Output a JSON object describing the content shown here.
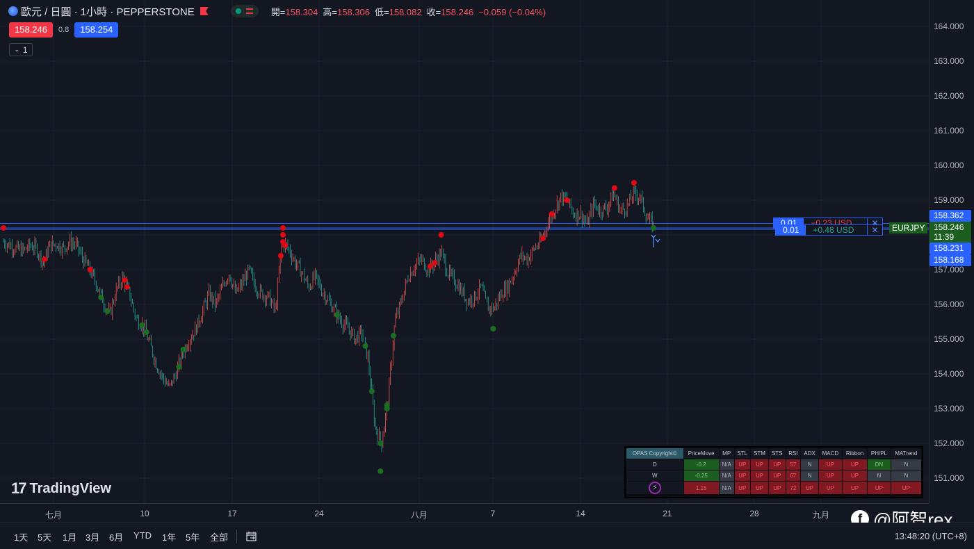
{
  "header": {
    "symbol_title": "歐元 / 日圓 · 1小時 · PEPPERSTONE",
    "ohlc": [
      {
        "label": "開",
        "value": "158.304"
      },
      {
        "label": "高",
        "value": "158.306"
      },
      {
        "label": "低",
        "value": "158.082"
      },
      {
        "label": "收",
        "value": "158.246"
      }
    ],
    "change": "−0.059 (−0.04%)",
    "bid": "158.246",
    "spread": "0.8",
    "ask": "158.254",
    "indicator_count": "1"
  },
  "price_axis": {
    "ticks": [
      "164.000",
      "163.000",
      "162.000",
      "161.000",
      "160.000",
      "159.000",
      "157.000",
      "156.000",
      "155.000",
      "154.000",
      "153.000",
      "152.000",
      "151.000"
    ],
    "tags": [
      {
        "text": "158.362",
        "color": "#2962ff"
      },
      {
        "text": "158.246",
        "color": "#1b5e20"
      },
      {
        "text": "11:39",
        "color": "#1b5e20"
      },
      {
        "text": "158.231",
        "color": "#2962ff"
      },
      {
        "text": "158.168",
        "color": "#2962ff"
      }
    ]
  },
  "time_axis": {
    "labels": [
      "七月",
      "10",
      "17",
      "24",
      "八月",
      "7",
      "14",
      "21",
      "28",
      "九月"
    ]
  },
  "orders": {
    "order_top": {
      "qty": "0.01",
      "pnl": "−0.23 USD"
    },
    "order_bottom": {
      "qty": "0.01",
      "pnl": "+0.48 USD"
    },
    "symbol_tag": "EURJPY"
  },
  "toolbar": {
    "ranges": [
      "1天",
      "5天",
      "1月",
      "3月",
      "6月",
      "YTD",
      "1年",
      "5年",
      "全部"
    ],
    "clock": "13:48:20 (UTC+8)"
  },
  "watermark": {
    "logo_text": "TradingView",
    "rex_text": "@阿智rex"
  },
  "dashboard": {
    "brand": "OPAS Copyright©",
    "headers": [
      "PriceMove",
      "MP",
      "STL",
      "STM",
      "STS",
      "RSI",
      "ADX",
      "MACD",
      "Ribbon",
      "PH/PL",
      "MATrend"
    ],
    "rows": [
      {
        "label": "D",
        "cells": [
          {
            "v": "-0.2",
            "c": "green"
          },
          {
            "v": "N/A",
            "c": "n"
          },
          {
            "v": "UP",
            "c": "up"
          },
          {
            "v": "UP",
            "c": "up"
          },
          {
            "v": "UP",
            "c": "up"
          },
          {
            "v": "57",
            "c": "up"
          },
          {
            "v": "N",
            "c": "n"
          },
          {
            "v": "UP",
            "c": "up"
          },
          {
            "v": "UP",
            "c": "up"
          },
          {
            "v": "DN",
            "c": "dn"
          },
          {
            "v": "N",
            "c": "n"
          }
        ]
      },
      {
        "label": "W",
        "cells": [
          {
            "v": "-0.25",
            "c": "green"
          },
          {
            "v": "N/A",
            "c": "n"
          },
          {
            "v": "UP",
            "c": "up"
          },
          {
            "v": "UP",
            "c": "up"
          },
          {
            "v": "UP",
            "c": "up"
          },
          {
            "v": "67",
            "c": "up"
          },
          {
            "v": "N",
            "c": "n"
          },
          {
            "v": "UP",
            "c": "up"
          },
          {
            "v": "UP",
            "c": "up"
          },
          {
            "v": "N",
            "c": "n"
          },
          {
            "v": "N",
            "c": "n"
          }
        ]
      },
      {
        "label": "",
        "cells": [
          {
            "v": "1.15",
            "c": "red"
          },
          {
            "v": "N/A",
            "c": "n"
          },
          {
            "v": "UP",
            "c": "up"
          },
          {
            "v": "UP",
            "c": "up"
          },
          {
            "v": "UP",
            "c": "up"
          },
          {
            "v": "72",
            "c": "up"
          },
          {
            "v": "UP",
            "c": "up"
          },
          {
            "v": "UP",
            "c": "up"
          },
          {
            "v": "UP",
            "c": "up"
          },
          {
            "v": "UP",
            "c": "up"
          },
          {
            "v": "UP",
            "c": "up"
          }
        ]
      }
    ]
  },
  "colors": {
    "background": "#131722",
    "up_candle": "#ef5350",
    "down_candle": "#26a69a",
    "signal_red": "#e00814",
    "signal_green": "#1b6e20",
    "accent_blue": "#2962ff"
  },
  "chart_data": {
    "type": "line",
    "title": "歐元 / 日圓 · 1小時 · PEPPERSTONE",
    "xlabel": "",
    "ylabel": "",
    "ylim": [
      150.6,
      164.7
    ],
    "x_labels": [
      "七月",
      "10",
      "17",
      "24",
      "八月",
      "7",
      "14",
      "21",
      "28",
      "九月"
    ],
    "series": [
      {
        "values": [
          157.8,
          157.7,
          157.6,
          157.55,
          157.7,
          157.6,
          157.2,
          157.7,
          157.75,
          157.6,
          157.8,
          157.7,
          157.3,
          157.0,
          156.6,
          156.1,
          155.7,
          156.4,
          156.8,
          156.3,
          155.6,
          155.4,
          154.9,
          154.3,
          153.9,
          153.6,
          154.0,
          154.6,
          155.0,
          155.3,
          155.8,
          156.3,
          156.0,
          156.5,
          156.9,
          156.3,
          156.6,
          157.0,
          156.5,
          156.3,
          156.2,
          155.8,
          157.8,
          157.6,
          157.2,
          156.9,
          156.5,
          156.8,
          156.4,
          156.1,
          155.8,
          155.5,
          155.3,
          155.0,
          155.2,
          154.4,
          152.5,
          152.0,
          153.3,
          155.5,
          156.1,
          156.8,
          157.1,
          157.3,
          157.0,
          157.2,
          157.5,
          156.9,
          156.7,
          156.4,
          156.1,
          156.2,
          156.5,
          155.9,
          155.9,
          156.3,
          156.5,
          156.9,
          157.4,
          157.3,
          157.6,
          157.8,
          158.3,
          158.7,
          159.1,
          159.0,
          158.6,
          158.6,
          158.3,
          158.9,
          158.7,
          158.8,
          159.2,
          158.7,
          158.8,
          159.2,
          159.1,
          158.5,
          158.25
        ]
      }
    ],
    "signals": {
      "red_dots_price_approx": [
        158.2,
        157.3,
        157.0,
        156.5,
        156.7,
        158.2,
        157.4,
        157.7,
        157.7,
        157.8,
        158.0,
        158.0,
        157.1,
        157.2,
        157.9,
        158.6,
        159.0,
        159.35,
        159.5
      ],
      "green_dots_price_approx": [
        156.2,
        155.8,
        155.4,
        155.2,
        154.7,
        154.2,
        153.5,
        153.1,
        155.7,
        155.1,
        154.8,
        153.0,
        152.0,
        151.2,
        155.3,
        158.2
      ]
    }
  }
}
